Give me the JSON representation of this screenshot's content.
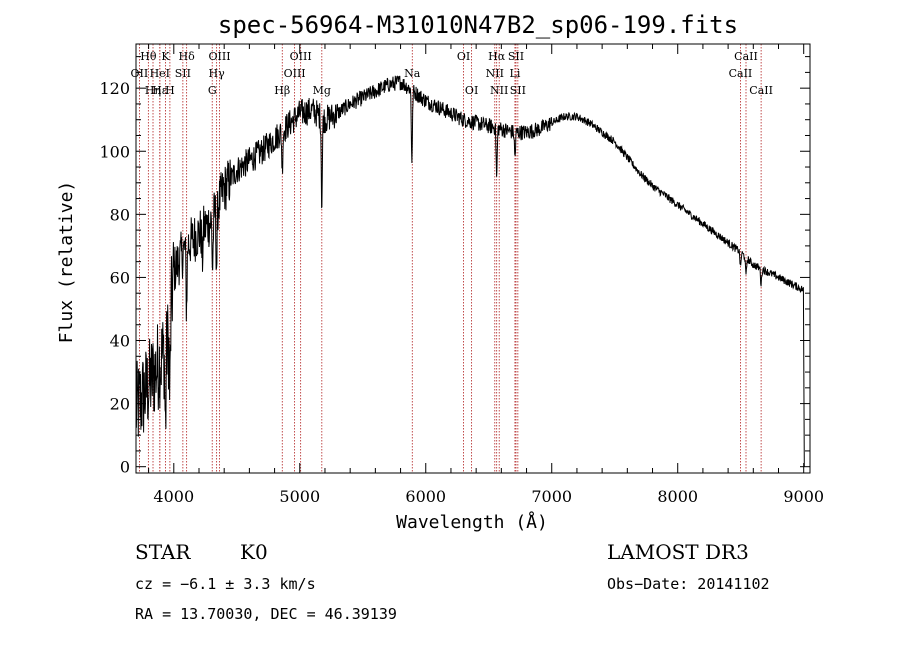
{
  "chart_data": {
    "type": "line",
    "title": "spec-56964-M31010N47B2_sp06-199.fits",
    "xlabel": "Wavelength (Å)",
    "ylabel": "Flux (relative)",
    "xlim": [
      3700,
      9050
    ],
    "ylim": [
      -2,
      134
    ],
    "xticks": [
      4000,
      5000,
      6000,
      7000,
      8000,
      9000
    ],
    "yticks": [
      0,
      20,
      40,
      60,
      80,
      100,
      120
    ],
    "x_minor_step": 200,
    "y_minor_step": 5,
    "grid": false,
    "series": [
      {
        "name": "flux",
        "color": "#000000",
        "continuum": [
          [
            3700,
            18
          ],
          [
            3780,
            24
          ],
          [
            3850,
            30
          ],
          [
            3920,
            36
          ],
          [
            3960,
            40
          ],
          [
            4000,
            62
          ],
          [
            4100,
            70
          ],
          [
            4200,
            74
          ],
          [
            4300,
            78
          ],
          [
            4400,
            88
          ],
          [
            4500,
            94
          ],
          [
            4600,
            97
          ],
          [
            4700,
            100
          ],
          [
            4800,
            104
          ],
          [
            4900,
            108
          ],
          [
            5000,
            112
          ],
          [
            5100,
            113
          ],
          [
            5200,
            110
          ],
          [
            5300,
            112
          ],
          [
            5400,
            115
          ],
          [
            5500,
            117
          ],
          [
            5600,
            119
          ],
          [
            5700,
            121
          ],
          [
            5800,
            122
          ],
          [
            5900,
            119
          ],
          [
            6000,
            116
          ],
          [
            6100,
            114
          ],
          [
            6200,
            112
          ],
          [
            6300,
            110
          ],
          [
            6400,
            109
          ],
          [
            6500,
            108
          ],
          [
            6600,
            107
          ],
          [
            6700,
            106
          ],
          [
            6800,
            106
          ],
          [
            6900,
            107
          ],
          [
            7000,
            109
          ],
          [
            7100,
            111
          ],
          [
            7200,
            111
          ],
          [
            7300,
            109
          ],
          [
            7400,
            106
          ],
          [
            7500,
            103
          ],
          [
            7600,
            98
          ],
          [
            7700,
            93
          ],
          [
            7800,
            89
          ],
          [
            7900,
            86
          ],
          [
            8000,
            83
          ],
          [
            8100,
            80
          ],
          [
            8200,
            77
          ],
          [
            8300,
            74
          ],
          [
            8400,
            71
          ],
          [
            8500,
            68
          ],
          [
            8600,
            64
          ],
          [
            8700,
            62
          ],
          [
            8800,
            60
          ],
          [
            8900,
            58
          ],
          [
            9000,
            56
          ]
        ],
        "absorption_features": [
          [
            3934,
            25
          ],
          [
            3969,
            22
          ],
          [
            4101,
            20
          ],
          [
            4226,
            10
          ],
          [
            4308,
            16
          ],
          [
            4340,
            18
          ],
          [
            4861,
            12
          ],
          [
            5175,
            28
          ],
          [
            5890,
            22
          ],
          [
            6563,
            16
          ],
          [
            6708,
            8
          ],
          [
            8498,
            5
          ],
          [
            8542,
            6
          ],
          [
            8662,
            5
          ]
        ],
        "edge_drops": [
          [
            9005,
            0
          ]
        ]
      }
    ],
    "spectral_lines": [
      {
        "label": "Hθ",
        "wave": 3798,
        "row": 0
      },
      {
        "label": "OII",
        "wave": 3727,
        "row": 1
      },
      {
        "label": "Hη",
        "wave": 3835,
        "row": 2
      },
      {
        "label": "Hε",
        "wave": 3889,
        "row": 2
      },
      {
        "label": "HeI",
        "wave": 3889,
        "row": 1
      },
      {
        "label": "K",
        "wave": 3934,
        "row": 0
      },
      {
        "label": "SII",
        "wave": 4072,
        "row": 1
      },
      {
        "label": "H",
        "wave": 3969,
        "row": 2
      },
      {
        "label": "Hδ",
        "wave": 4102,
        "row": 0
      },
      {
        "label": "OIII",
        "wave": 4363,
        "row": 0
      },
      {
        "label": "Hγ",
        "wave": 4340,
        "row": 1
      },
      {
        "label": "G",
        "wave": 4305,
        "row": 2
      },
      {
        "label": "Hβ",
        "wave": 4861,
        "row": 2
      },
      {
        "label": "OIII",
        "wave": 5007,
        "row": 0
      },
      {
        "label": "OIII",
        "wave": 4959,
        "row": 1
      },
      {
        "label": "Mg",
        "wave": 5175,
        "row": 2
      },
      {
        "label": "Na",
        "wave": 5893,
        "row": 1
      },
      {
        "label": "OI",
        "wave": 6300,
        "row": 0
      },
      {
        "label": "OI",
        "wave": 6364,
        "row": 2
      },
      {
        "label": "Hα",
        "wave": 6563,
        "row": 0
      },
      {
        "label": "NII",
        "wave": 6548,
        "row": 1
      },
      {
        "label": "NII",
        "wave": 6583,
        "row": 2
      },
      {
        "label": "SII",
        "wave": 6716,
        "row": 0
      },
      {
        "label": "Li",
        "wave": 6708,
        "row": 1
      },
      {
        "label": "SII",
        "wave": 6731,
        "row": 2
      },
      {
        "label": "CaII",
        "wave": 8542,
        "row": 0
      },
      {
        "label": "CaII",
        "wave": 8498,
        "row": 1
      },
      {
        "label": "CaII",
        "wave": 8662,
        "row": 2
      }
    ],
    "line_color": "#b22222"
  },
  "info": {
    "object_class": "STAR",
    "subclass": "K0",
    "survey": "LAMOST DR3",
    "cz": "cz = −6.1 ± 3.3 km/s",
    "obs_date": "Obs−Date: 20141102",
    "coords": "RA =  13.70030, DEC =  46.39139"
  }
}
